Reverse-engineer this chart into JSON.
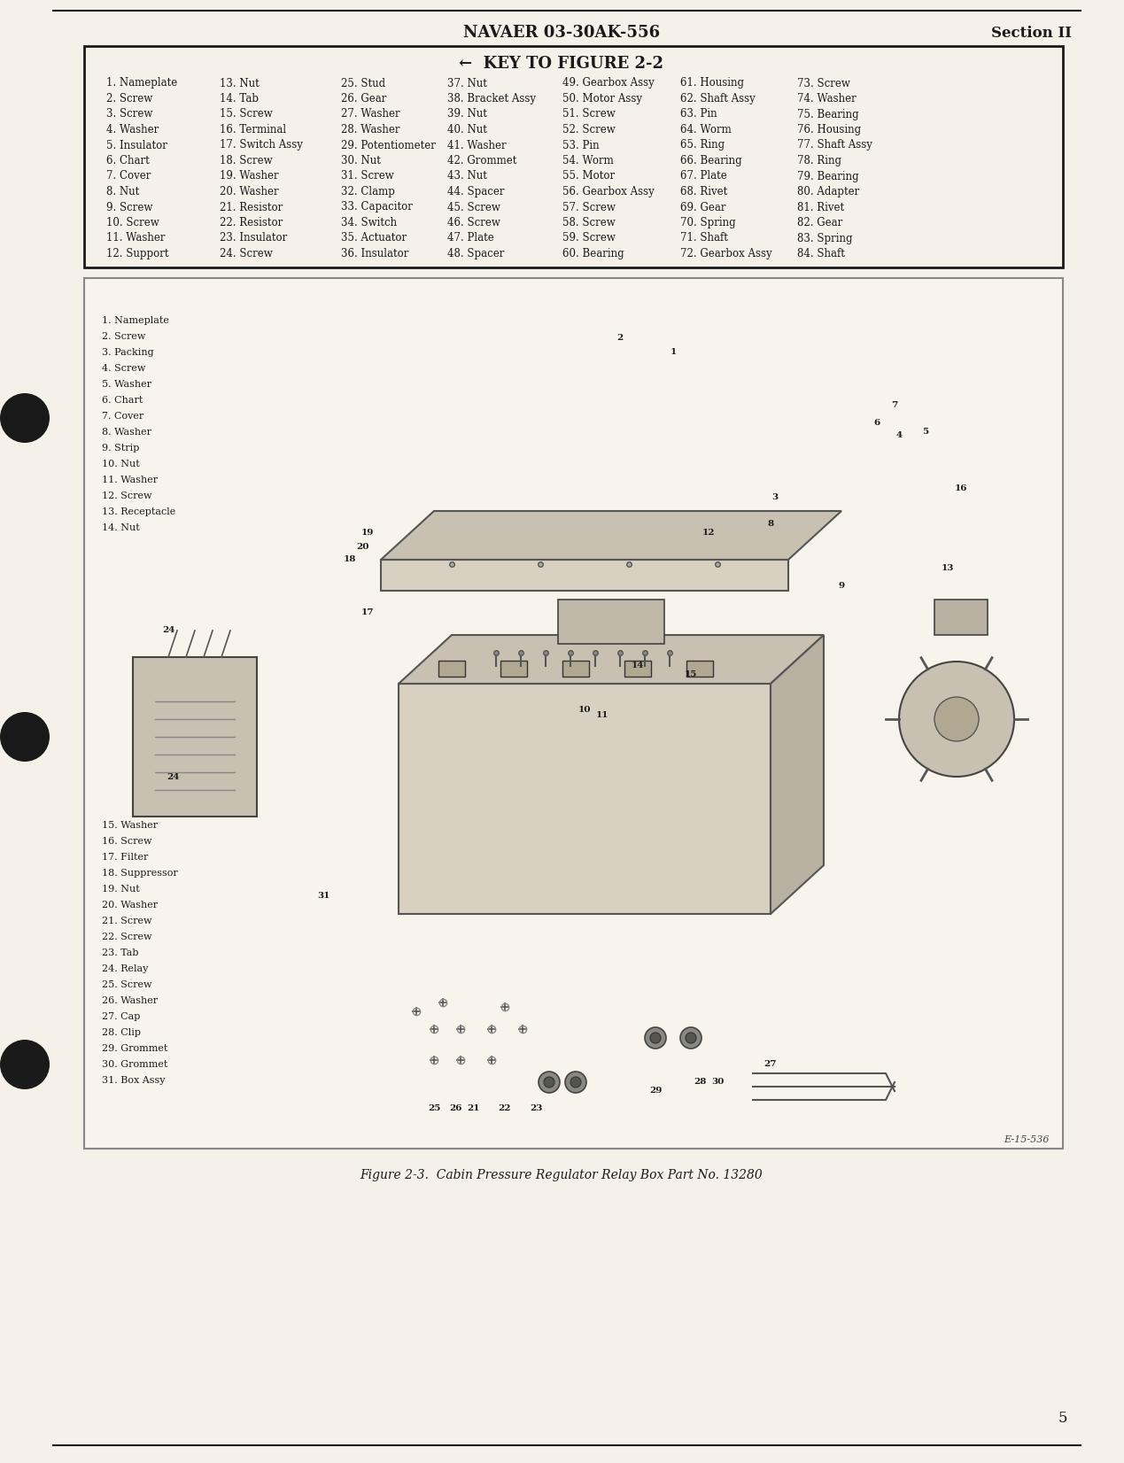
{
  "page_bg": "#f5f0e8",
  "header_text": "NAVAER 03-30AK-556",
  "header_right": "Section II",
  "footer_page_num": "5",
  "footer_caption": "Figure 2-3.  Cabin Pressure Regulator Relay Box Part No. 13280",
  "key_title": "←  KEY TO FIGURE 2-2",
  "key_items": [
    [
      "1. Nameplate",
      "13. Nut",
      "25. Stud",
      "37. Nut",
      "49. Gearbox Assy",
      "61. Housing",
      "73. Screw"
    ],
    [
      "2. Screw",
      "14. Tab",
      "26. Gear",
      "38. Bracket Assy",
      "50. Motor Assy",
      "62. Shaft Assy",
      "74. Washer"
    ],
    [
      "3. Screw",
      "15. Screw",
      "27. Washer",
      "39. Nut",
      "51. Screw",
      "63. Pin",
      "75. Bearing"
    ],
    [
      "4. Washer",
      "16. Terminal",
      "28. Washer",
      "40. Nut",
      "52. Screw",
      "64. Worm",
      "76. Housing"
    ],
    [
      "5. Insulator",
      "17. Switch Assy",
      "29. Potentiometer",
      "41. Washer",
      "53. Pin",
      "65. Ring",
      "77. Shaft Assy"
    ],
    [
      "6. Chart",
      "18. Screw",
      "30. Nut",
      "42. Grommet",
      "54. Worm",
      "66. Bearing",
      "78. Ring"
    ],
    [
      "7. Cover",
      "19. Washer",
      "31. Screw",
      "43. Nut",
      "55. Motor",
      "67. Plate",
      "79. Bearing"
    ],
    [
      "8. Nut",
      "20. Washer",
      "32. Clamp",
      "44. Spacer",
      "56. Gearbox Assy",
      "68. Rivet",
      "80. Adapter"
    ],
    [
      "9. Screw",
      "21. Resistor",
      "33. Capacitor",
      "45. Screw",
      "57. Screw",
      "69. Gear",
      "81. Rivet"
    ],
    [
      "10. Screw",
      "22. Resistor",
      "34. Switch",
      "46. Screw",
      "58. Screw",
      "70. Spring",
      "82. Gear"
    ],
    [
      "11. Washer",
      "23. Insulator",
      "35. Actuator",
      "47. Plate",
      "59. Screw",
      "71. Shaft",
      "83. Spring"
    ],
    [
      "12. Support",
      "24. Screw",
      "36. Insulator",
      "48. Spacer",
      "60. Bearing",
      "72. Gearbox Assy",
      "84. Shaft"
    ]
  ],
  "legend_items_left_top": [
    "1. Nameplate",
    "2. Screw",
    "3. Packing",
    "4. Screw",
    "5. Washer",
    "6. Chart",
    "7. Cover",
    "8. Washer",
    "9. Strip",
    "10. Nut",
    "11. Washer",
    "12. Screw",
    "13. Receptacle",
    "14. Nut"
  ],
  "legend_items_left_bottom": [
    "15. Washer",
    "16. Screw",
    "17. Filter",
    "18. Suppressor",
    "19. Nut",
    "20. Washer",
    "21. Screw",
    "22. Screw",
    "23. Tab",
    "24. Relay",
    "25. Screw",
    "26. Washer",
    "27. Cap",
    "28. Clip",
    "29. Grommet",
    "30. Grommet",
    "31. Box Assy"
  ],
  "ref_code": "E-15-536"
}
